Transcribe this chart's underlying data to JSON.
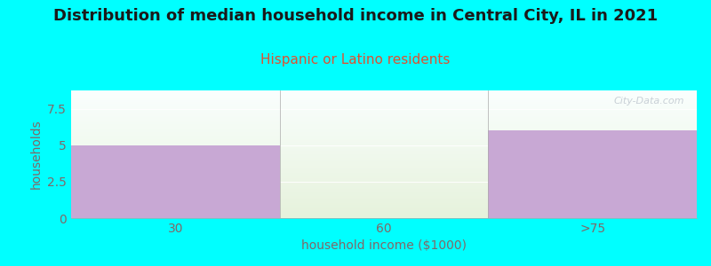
{
  "title": "Distribution of median household income in Central City, IL in 2021",
  "subtitle": "Hispanic or Latino residents",
  "xlabel": "household income ($1000)",
  "ylabel": "households",
  "categories": [
    "30",
    "60",
    ">75"
  ],
  "values": [
    5,
    0,
    6
  ],
  "bar_color": "#C8A8D4",
  "background_color": "#00FFFF",
  "plot_bg_top": "#FAFFFE",
  "plot_bg_bottom": "#E6F2DC",
  "ylim": [
    0,
    8.75
  ],
  "yticks": [
    0,
    2.5,
    5,
    7.5
  ],
  "title_fontsize": 13,
  "subtitle_fontsize": 11,
  "subtitle_color": "#E05030",
  "axis_label_color": "#806868",
  "tick_color": "#806868",
  "watermark": "City-Data.com"
}
